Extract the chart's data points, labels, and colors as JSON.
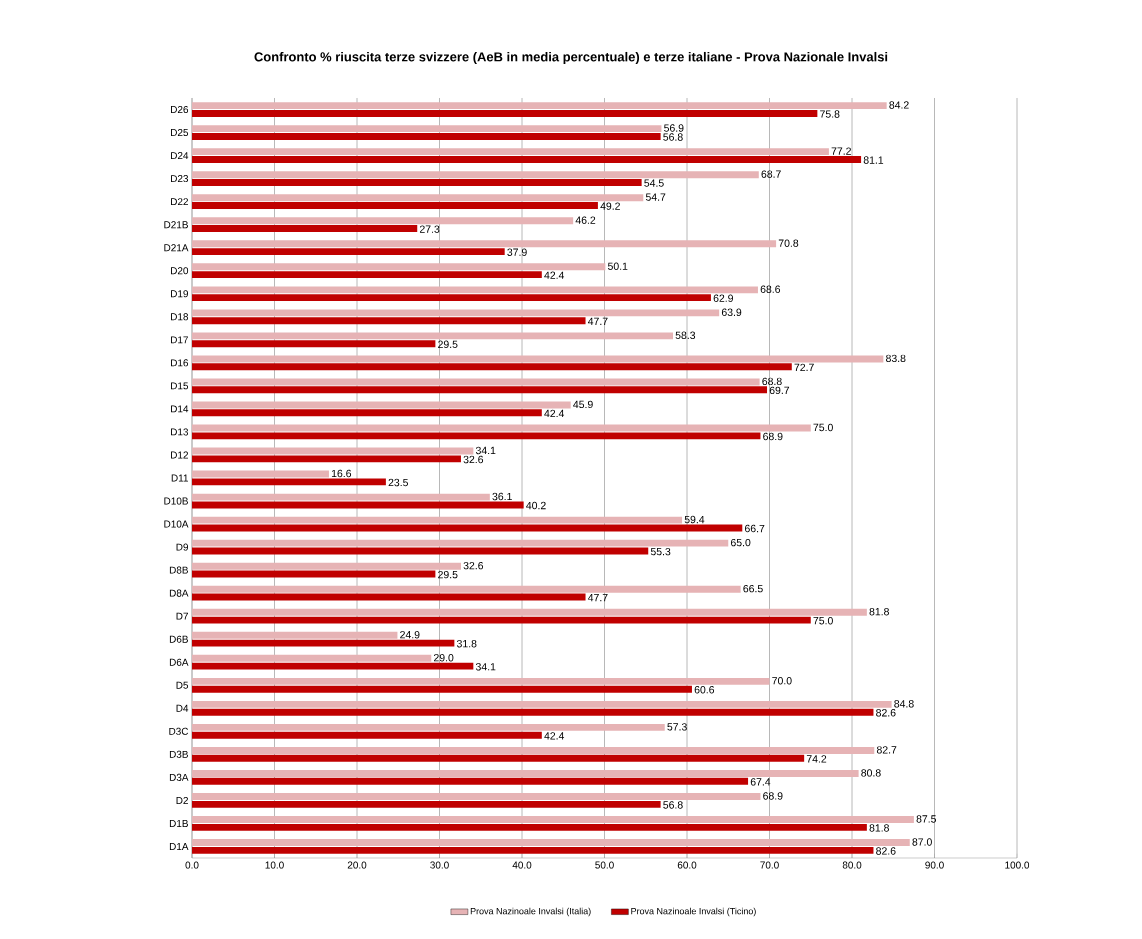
{
  "chart_data": {
    "type": "bar",
    "orientation": "horizontal",
    "title": "Confronto % riuscita terze svizzere (AeB in media percentuale) e terze italiane  - Prova Nazionale  Invalsi",
    "categories": [
      "D26",
      "D25",
      "D24",
      "D23",
      "D22",
      "D21B",
      "D21A",
      "D20",
      "D19",
      "D18",
      "D17",
      "D16",
      "D15",
      "D14",
      "D13",
      "D12",
      "D11",
      "D10B",
      "D10A",
      "D9",
      "D8B",
      "D8A",
      "D7",
      "D6B",
      "D6A",
      "D5",
      "D4",
      "D3C",
      "D3B",
      "D3A",
      "D2",
      "D1B",
      "D1A"
    ],
    "series": [
      {
        "name": "Prova Nazinoale  Invalsi  (Italia)",
        "color": "#e6b3b5",
        "values": [
          84.2,
          56.9,
          77.2,
          68.7,
          54.7,
          46.2,
          70.8,
          50.1,
          68.6,
          63.9,
          58.3,
          83.8,
          68.8,
          45.9,
          75.0,
          34.1,
          16.6,
          36.1,
          59.4,
          65.0,
          32.6,
          66.5,
          81.8,
          24.9,
          29.0,
          70.0,
          84.8,
          57.3,
          82.7,
          80.8,
          68.9,
          87.5,
          87.0
        ],
        "value_labels": [
          "84.2",
          "56.9",
          "77.2",
          "68.7",
          "54.7",
          "46.2",
          "70.8",
          "50.1",
          "68.6",
          "63.9",
          "58.3",
          "83.8",
          "68.8",
          "45.9",
          "75.0",
          "34.1",
          "16.6",
          "36.1",
          "59.4",
          "65.0",
          "32.6",
          "66.5",
          "81.8",
          "24.9",
          "29.0",
          "70.0",
          "84.8",
          "57.3",
          "82.7",
          "80.8",
          "68.9",
          "87.5",
          "87.0"
        ]
      },
      {
        "name": "Prova Nazinoale  Invalsi  (Ticino)",
        "color": "#c00000",
        "values": [
          75.8,
          56.8,
          81.1,
          54.5,
          49.2,
          27.3,
          37.9,
          42.4,
          62.9,
          47.7,
          29.5,
          72.7,
          69.7,
          42.4,
          68.9,
          32.6,
          23.5,
          40.2,
          66.7,
          55.3,
          29.5,
          47.7,
          75.0,
          31.8,
          34.1,
          60.6,
          82.6,
          42.4,
          74.2,
          67.4,
          56.8,
          81.8,
          82.6
        ],
        "value_labels": [
          "75.8",
          "56.8",
          "81.1",
          "54.5",
          "49.2",
          "27.3",
          "37.9",
          "42.4",
          "62.9",
          "47.7",
          "29.5",
          "72.7",
          "69.7",
          "42.4",
          "68.9",
          "32.6",
          "23.5",
          "40.2",
          "66.7",
          "55.3",
          "29.5",
          "47.7",
          "75.0",
          "31.8",
          "34.1",
          "60.6",
          "82.6",
          "42.4",
          "74.2",
          "67.4",
          "56.8",
          "81.8",
          "82.6"
        ]
      }
    ],
    "xlim": [
      0,
      100
    ],
    "xticks": [
      {
        "value": 0,
        "label": "0.0"
      },
      {
        "value": 10,
        "label": "10.0"
      },
      {
        "value": 20,
        "label": "20.0"
      },
      {
        "value": 30,
        "label": "30.0"
      },
      {
        "value": 40,
        "label": "40.0"
      },
      {
        "value": 50,
        "label": "50.0"
      },
      {
        "value": 60,
        "label": "60.0"
      },
      {
        "value": 70,
        "label": "70.0"
      },
      {
        "value": 80,
        "label": "80.0"
      },
      {
        "value": 90,
        "label": "90.0"
      },
      {
        "value": 100,
        "label": "100.0"
      }
    ],
    "grid": "x",
    "legend": "bottom"
  }
}
